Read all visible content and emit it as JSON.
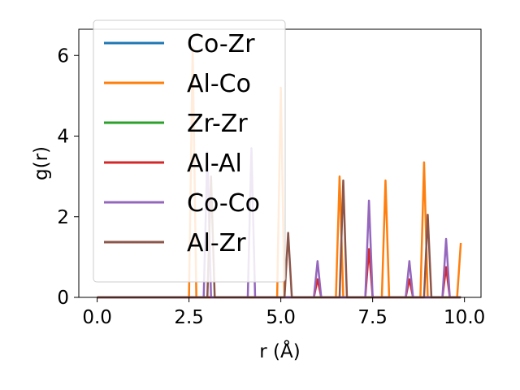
{
  "chart_data": {
    "type": "line",
    "title": "",
    "xlabel": "r (Å)",
    "ylabel": "g(r)",
    "xlim": [
      -0.5,
      10.45
    ],
    "ylim": [
      0,
      6.65
    ],
    "xticks": [
      0.0,
      2.5,
      5.0,
      7.5,
      10.0
    ],
    "xtick_labels": [
      "0.0",
      "2.5",
      "5.0",
      "7.5",
      "10.0"
    ],
    "yticks": [
      0,
      2,
      4,
      6
    ],
    "ytick_labels": [
      "0",
      "2",
      "4",
      "6"
    ],
    "grid": false,
    "legend_position": "upper-left",
    "series": [
      {
        "name": "Co-Zr",
        "color": "#1f77b4",
        "x": [
          0,
          9.9
        ],
        "y": [
          0,
          0
        ]
      },
      {
        "name": "Al-Co",
        "color": "#ff7f0e",
        "x": [
          0,
          2.5,
          2.6,
          2.7,
          4.9,
          5.0,
          5.1,
          6.5,
          6.6,
          6.7,
          7.75,
          7.85,
          7.95,
          8.8,
          8.9,
          9.0,
          9.8,
          9.9
        ],
        "y": [
          0,
          0,
          6.2,
          0,
          0,
          5.2,
          0,
          0,
          3.0,
          0,
          0,
          2.9,
          0,
          0,
          3.35,
          0,
          0,
          1.35
        ]
      },
      {
        "name": "Zr-Zr",
        "color": "#2ca02c",
        "x": [
          0,
          9.9
        ],
        "y": [
          0,
          0
        ]
      },
      {
        "name": "Al-Al",
        "color": "#d62728",
        "x": [
          0,
          5.9,
          6.0,
          6.1,
          7.3,
          7.4,
          7.5,
          8.4,
          8.5,
          8.6,
          9.4,
          9.5,
          9.6,
          9.9
        ],
        "y": [
          0,
          0,
          0.45,
          0,
          0,
          1.2,
          0,
          0,
          0.45,
          0,
          0,
          0.75,
          0,
          0
        ]
      },
      {
        "name": "Co-Co",
        "color": "#9467bd",
        "x": [
          0,
          2.9,
          3.0,
          3.1,
          4.1,
          4.2,
          4.3,
          5.9,
          6.0,
          6.1,
          7.3,
          7.4,
          7.5,
          8.4,
          8.5,
          8.6,
          9.4,
          9.5,
          9.6,
          9.9
        ],
        "y": [
          0,
          0,
          3.6,
          0,
          0,
          3.7,
          0,
          0,
          0.9,
          0,
          0,
          2.4,
          0,
          0,
          0.9,
          0,
          0,
          1.45,
          0,
          0
        ]
      },
      {
        "name": "Al-Zr",
        "color": "#8c564b",
        "x": [
          0,
          3.0,
          3.1,
          3.2,
          5.1,
          5.2,
          5.3,
          6.6,
          6.7,
          6.8,
          8.9,
          9.0,
          9.1,
          9.9
        ],
        "y": [
          0,
          0,
          3.0,
          0,
          0,
          1.6,
          0,
          0,
          2.9,
          0,
          0,
          2.05,
          0,
          0
        ]
      }
    ]
  }
}
